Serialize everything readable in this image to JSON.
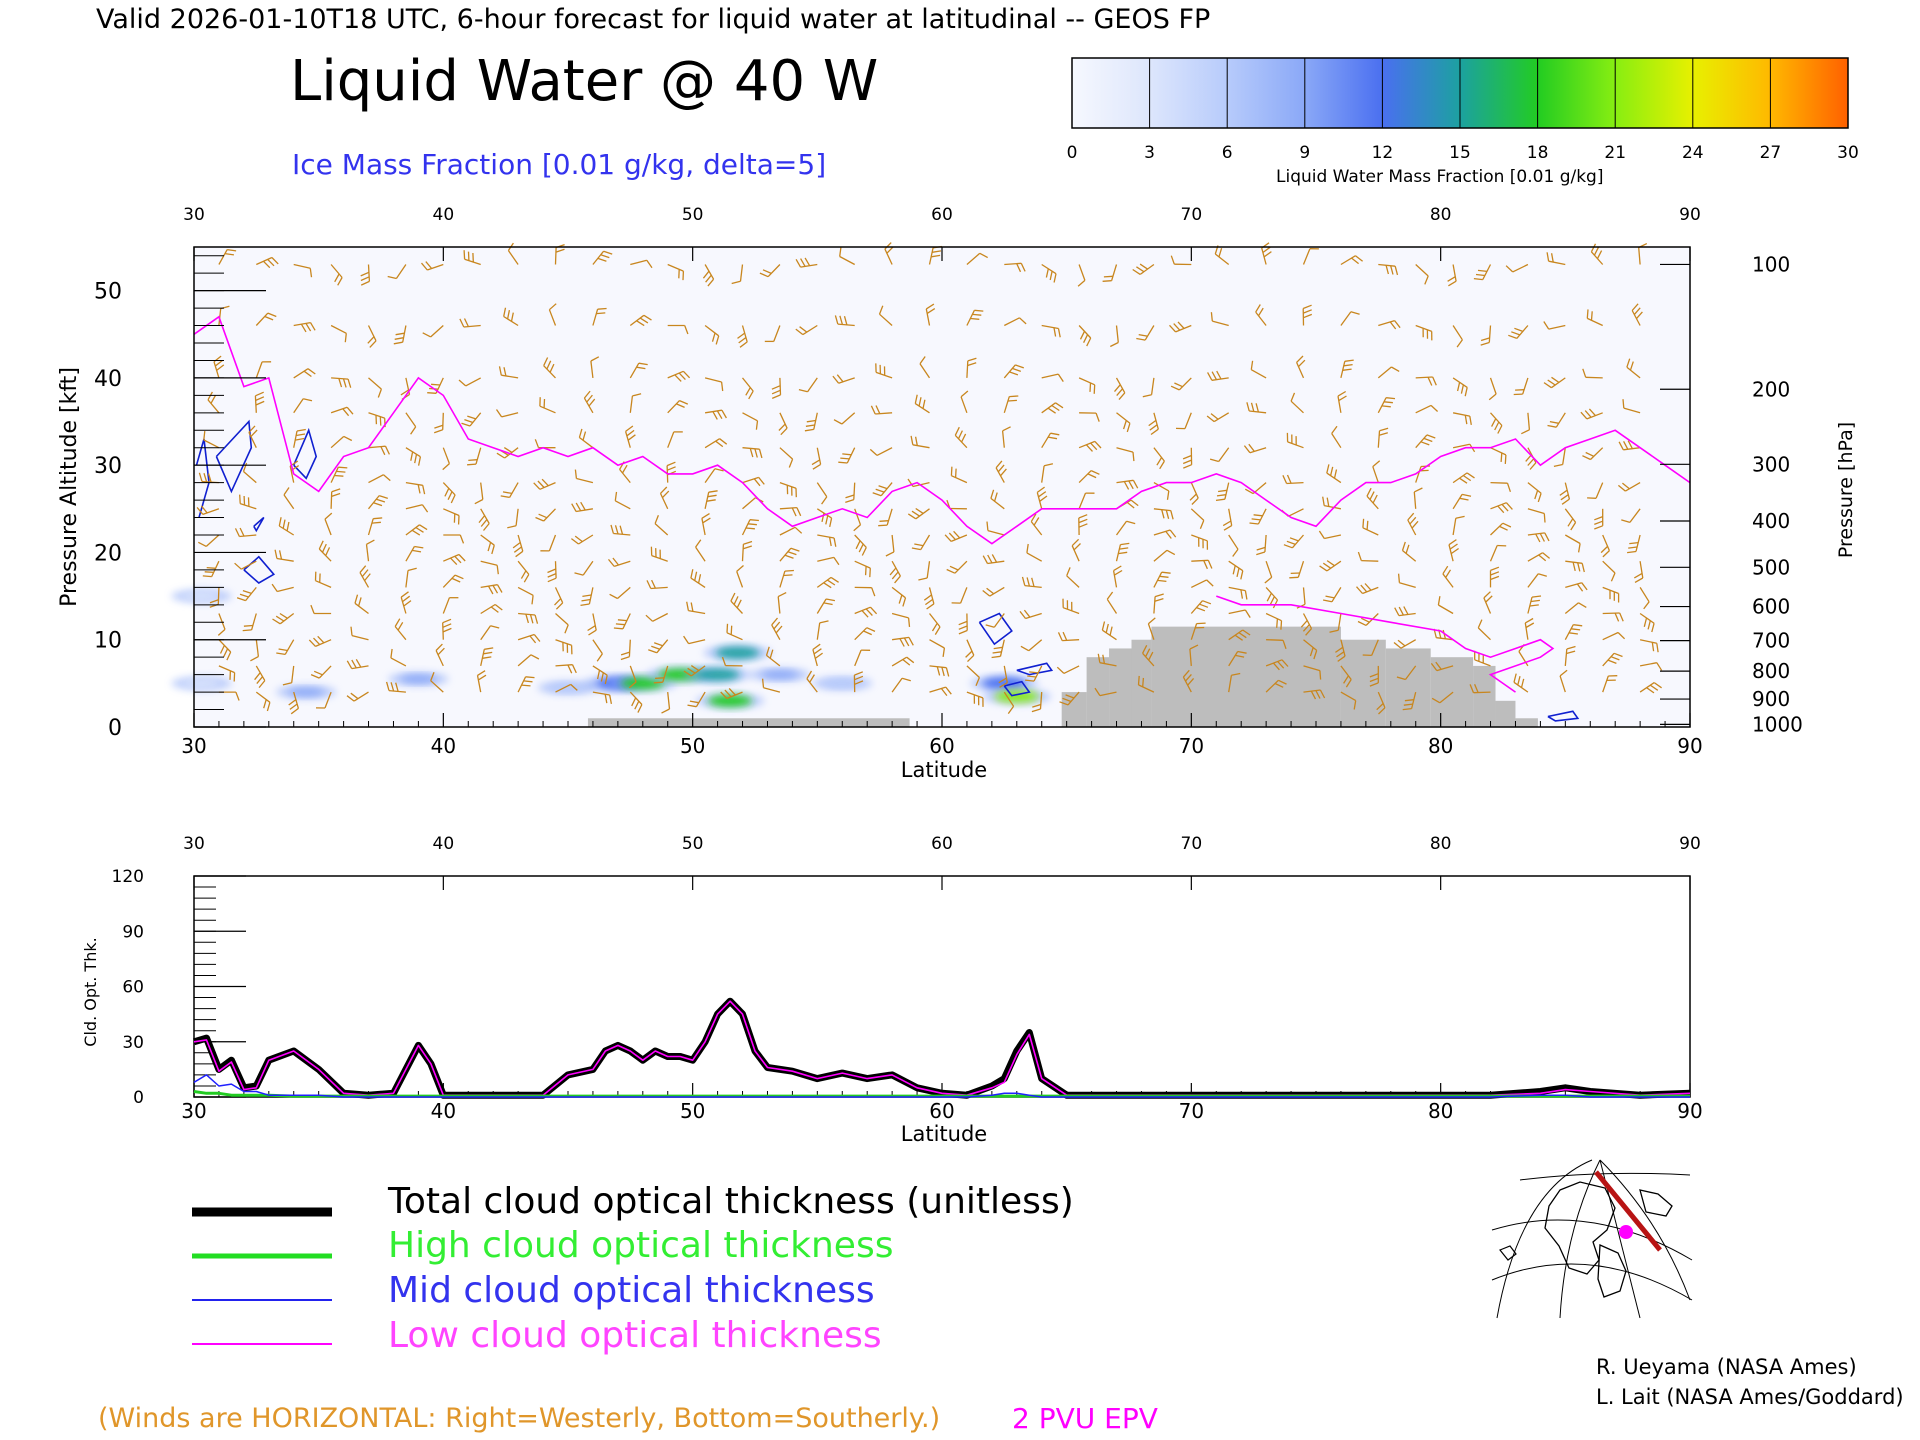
{
  "header": {
    "valid_line": "Valid 2026-01-10T18 UTC, 6-hour forecast for liquid water at latitudinal -- GEOS FP",
    "title": "Liquid Water @ 40 W",
    "subtitle": "Ice Mass Fraction [0.01 g/kg, delta=5]"
  },
  "colorbar": {
    "ticks": [
      "0",
      "3",
      "6",
      "9",
      "12",
      "15",
      "18",
      "21",
      "24",
      "27",
      "30"
    ],
    "label": "Liquid Water Mass Fraction [0.01 g/kg]",
    "colors": [
      "#f6f8fe",
      "#dde6fc",
      "#b7cbfb",
      "#8aa8f7",
      "#4a6ff0",
      "#1ca1a0",
      "#22cc22",
      "#88ee11",
      "#e8f000",
      "#ffb800",
      "#ff6000",
      "#ff2000"
    ]
  },
  "chart_data": [
    {
      "type": "heatmap",
      "title": "Liquid Water @ 40 W",
      "xlabel": "Latitude",
      "ylabel": "Pressure Altitude [kft]",
      "y2label": "Pressure [hPa]",
      "xlim": [
        30,
        90
      ],
      "ylim": [
        0,
        55
      ],
      "x_ticks": [
        "30",
        "40",
        "50",
        "60",
        "70",
        "80",
        "90"
      ],
      "y_ticks": [
        "0",
        "10",
        "20",
        "30",
        "40",
        "50"
      ],
      "pressure_ticks": [
        {
          "label": "100",
          "kft": 53
        },
        {
          "label": "200",
          "kft": 38.7
        },
        {
          "label": "300",
          "kft": 30.1
        },
        {
          "label": "400",
          "kft": 23.6
        },
        {
          "label": "500",
          "kft": 18.3
        },
        {
          "label": "600",
          "kft": 13.8
        },
        {
          "label": "700",
          "kft": 9.9
        },
        {
          "label": "800",
          "kft": 6.4
        },
        {
          "label": "900",
          "kft": 3.2
        },
        {
          "label": "1000",
          "kft": 0.3
        }
      ],
      "epv_2pvu_line": [
        [
          30,
          45
        ],
        [
          31,
          47
        ],
        [
          32,
          39
        ],
        [
          33,
          40
        ],
        [
          34,
          29
        ],
        [
          35,
          27
        ],
        [
          36,
          31
        ],
        [
          37,
          32
        ],
        [
          38,
          36
        ],
        [
          39,
          40
        ],
        [
          40,
          38
        ],
        [
          41,
          33
        ],
        [
          42,
          32
        ],
        [
          43,
          31
        ],
        [
          44,
          32
        ],
        [
          45,
          31
        ],
        [
          46,
          32
        ],
        [
          47,
          30
        ],
        [
          48,
          31
        ],
        [
          49,
          29
        ],
        [
          50,
          29
        ],
        [
          51,
          30
        ],
        [
          52,
          28
        ],
        [
          53,
          25
        ],
        [
          54,
          23
        ],
        [
          55,
          24
        ],
        [
          56,
          25
        ],
        [
          57,
          24
        ],
        [
          58,
          27
        ],
        [
          59,
          28
        ],
        [
          60,
          26
        ],
        [
          61,
          23
        ],
        [
          62,
          21
        ],
        [
          63,
          23
        ],
        [
          64,
          25
        ],
        [
          65,
          25
        ],
        [
          66,
          25
        ],
        [
          67,
          25
        ],
        [
          68,
          27
        ],
        [
          69,
          28
        ],
        [
          70,
          28
        ],
        [
          71,
          29
        ],
        [
          72,
          28
        ],
        [
          73,
          26
        ],
        [
          74,
          24
        ],
        [
          75,
          23
        ],
        [
          76,
          26
        ],
        [
          77,
          28
        ],
        [
          78,
          28
        ],
        [
          79,
          29
        ],
        [
          80,
          31
        ],
        [
          81,
          32
        ],
        [
          82,
          32
        ],
        [
          83,
          33
        ],
        [
          84,
          30
        ],
        [
          85,
          32
        ],
        [
          86,
          33
        ],
        [
          87,
          34
        ],
        [
          88,
          32
        ],
        [
          89,
          30
        ],
        [
          90,
          28
        ]
      ],
      "low_epv_line": [
        [
          71,
          15
        ],
        [
          72,
          14
        ],
        [
          74,
          14
        ],
        [
          76,
          13
        ],
        [
          78,
          12
        ],
        [
          80,
          11
        ],
        [
          81,
          9
        ],
        [
          82,
          8
        ],
        [
          83,
          9
        ],
        [
          84,
          10
        ],
        [
          84.5,
          9
        ],
        [
          84,
          8
        ],
        [
          82,
          6
        ],
        [
          83,
          4
        ]
      ],
      "terrain": [
        {
          "from": 45.8,
          "to": 58.7,
          "top": 1
        },
        {
          "from": 64.8,
          "to": 65.8,
          "top": 4
        },
        {
          "from": 65.8,
          "to": 66.7,
          "top": 8
        },
        {
          "from": 66.7,
          "to": 67.6,
          "top": 9
        },
        {
          "from": 67.6,
          "to": 68.4,
          "top": 10
        },
        {
          "from": 68.4,
          "to": 76.0,
          "top": 11.5
        },
        {
          "from": 76.0,
          "to": 77.8,
          "top": 10
        },
        {
          "from": 77.8,
          "to": 79.6,
          "top": 9
        },
        {
          "from": 79.6,
          "to": 81.3,
          "top": 8
        },
        {
          "from": 81.3,
          "to": 82.2,
          "top": 7
        },
        {
          "from": 82.2,
          "to": 83.0,
          "top": 3
        },
        {
          "from": 83.0,
          "to": 83.9,
          "top": 1
        }
      ],
      "liquid_water_cells": [
        {
          "lat": 30.3,
          "kft": 5,
          "value": 4
        },
        {
          "lat": 30.3,
          "kft": 15,
          "value": 3
        },
        {
          "lat": 34.5,
          "kft": 4,
          "value": 9
        },
        {
          "lat": 39.0,
          "kft": 5.5,
          "value": 8
        },
        {
          "lat": 45.0,
          "kft": 4.5,
          "value": 6
        },
        {
          "lat": 47.0,
          "kft": 5,
          "value": 13
        },
        {
          "lat": 48.0,
          "kft": 5,
          "value": 17
        },
        {
          "lat": 49.5,
          "kft": 6,
          "value": 18
        },
        {
          "lat": 51.0,
          "kft": 6,
          "value": 14
        },
        {
          "lat": 51.8,
          "kft": 8.5,
          "value": 15
        },
        {
          "lat": 51.5,
          "kft": 3,
          "value": 17
        },
        {
          "lat": 53.5,
          "kft": 6,
          "value": 8
        },
        {
          "lat": 56.0,
          "kft": 5,
          "value": 5
        },
        {
          "lat": 62.5,
          "kft": 5,
          "value": 13
        },
        {
          "lat": 63.0,
          "kft": 3.5,
          "value": 20
        }
      ],
      "ice_contours": [
        [
          [
            30.2,
            24
          ],
          [
            30.6,
            28
          ],
          [
            30.4,
            33
          ],
          [
            30.1,
            30
          ]
        ],
        [
          [
            30.9,
            31
          ],
          [
            32.2,
            35
          ],
          [
            32.3,
            32
          ],
          [
            31.5,
            27
          ],
          [
            30.9,
            31
          ]
        ],
        [
          [
            32.4,
            23
          ],
          [
            32.8,
            24
          ],
          [
            32.5,
            22.5
          ],
          [
            32.4,
            23
          ]
        ],
        [
          [
            32,
            18
          ],
          [
            32.6,
            19.5
          ],
          [
            33.2,
            17.5
          ],
          [
            32.6,
            16.5
          ],
          [
            32,
            18
          ]
        ],
        [
          [
            34,
            30
          ],
          [
            34.6,
            34
          ],
          [
            34.9,
            31
          ],
          [
            34.5,
            28.5
          ],
          [
            34,
            30
          ]
        ],
        [
          [
            61.5,
            12
          ],
          [
            62.3,
            13
          ],
          [
            62.8,
            11
          ],
          [
            62.1,
            9.5
          ],
          [
            61.5,
            12
          ]
        ],
        [
          [
            63,
            6.5
          ],
          [
            64.2,
            7.3
          ],
          [
            64.4,
            6.5
          ],
          [
            63.5,
            6
          ],
          [
            63,
            6.5
          ]
        ],
        [
          [
            62.5,
            4.7
          ],
          [
            63.2,
            5.2
          ],
          [
            63.5,
            4
          ],
          [
            62.8,
            3.6
          ],
          [
            62.5,
            4.7
          ]
        ],
        [
          [
            84.3,
            1.2
          ],
          [
            85.3,
            1.8
          ],
          [
            85.5,
            1
          ],
          [
            84.6,
            0.7
          ],
          [
            84.3,
            1.2
          ]
        ]
      ],
      "wind_barbs": {
        "columns": [
          31,
          32.5,
          34,
          35.5,
          37,
          38.5,
          40,
          41.5,
          43,
          44.5,
          46,
          47.5,
          49,
          50.5,
          52,
          53.5,
          55,
          56.5,
          58,
          59.5,
          61,
          62.5,
          64,
          65.5,
          67,
          68.5,
          70,
          71.5,
          73,
          74.5,
          76,
          77.5,
          79,
          80.5,
          82,
          83.5,
          85,
          86.5,
          88
        ],
        "levels": [
          4,
          7,
          10,
          13,
          16,
          19,
          22,
          25,
          28,
          32,
          36,
          40,
          46,
          53
        ]
      },
      "annotations": [
        "(Winds are HORIZONTAL: Right=Westerly, Bottom=Southerly.)",
        "2 PVU EPV"
      ]
    },
    {
      "type": "line",
      "xlabel": "Latitude",
      "ylabel": "Cld. Opt. Thk.",
      "xlim": [
        30,
        90
      ],
      "ylim": [
        0,
        120
      ],
      "x_ticks": [
        "30",
        "40",
        "50",
        "60",
        "70",
        "80",
        "90"
      ],
      "y_ticks": [
        "0",
        "30",
        "60",
        "90",
        "120"
      ],
      "x": [
        30,
        30.5,
        31,
        31.5,
        32,
        32.5,
        33,
        34,
        35,
        36,
        37,
        38,
        38.5,
        39,
        39.5,
        40,
        41,
        42,
        43,
        44,
        45,
        46,
        46.5,
        47,
        47.5,
        48,
        48.5,
        49,
        49.5,
        50,
        50.5,
        51,
        51.5,
        52,
        52.5,
        53,
        54,
        55,
        56,
        57,
        58,
        59,
        60,
        61,
        62,
        62.5,
        63,
        63.5,
        64,
        65,
        70,
        75,
        80,
        82,
        84,
        85,
        86,
        88,
        90
      ],
      "series": [
        {
          "name": "Total cloud optical thickness (unitless)",
          "color": "#000000",
          "values": [
            30,
            32,
            15,
            20,
            5,
            6,
            20,
            25,
            15,
            2,
            1,
            2,
            15,
            28,
            18,
            1,
            1,
            1,
            1,
            1,
            12,
            15,
            25,
            28,
            25,
            20,
            25,
            22,
            22,
            20,
            30,
            45,
            52,
            45,
            25,
            16,
            14,
            10,
            13,
            10,
            12,
            5,
            2,
            1,
            6,
            10,
            25,
            35,
            10,
            1,
            1,
            1,
            1,
            1,
            3,
            5,
            3,
            1,
            2
          ]
        },
        {
          "name": "High cloud optical thickness",
          "color": "#22cc22",
          "values": [
            3,
            2,
            2,
            1,
            1,
            1,
            1,
            0.5,
            0.5,
            0.5,
            0.5,
            0.5,
            0.5,
            0.5,
            0.5,
            0.5,
            0.5,
            0.5,
            0.5,
            0.5,
            0.5,
            0.5,
            0.5,
            0.5,
            0.5,
            0.5,
            0.5,
            0.5,
            0.5,
            0.5,
            0.5,
            0.5,
            0.5,
            0.5,
            0.5,
            0.5,
            0.5,
            0.5,
            0.5,
            0.5,
            0.5,
            0.5,
            0.5,
            0.5,
            0.5,
            0.5,
            0.5,
            0.5,
            0.5,
            0.5,
            0.5,
            0.5,
            0.5,
            0.5,
            0.5,
            0.5,
            0.5,
            0.5,
            0.5
          ]
        },
        {
          "name": "Mid cloud optical thickness",
          "color": "#2020ff",
          "values": [
            8,
            12,
            6,
            7,
            3,
            3,
            1,
            1,
            1,
            0,
            0,
            0,
            0,
            0,
            0,
            0,
            0,
            0,
            0,
            0,
            0,
            0,
            0,
            0,
            0,
            0,
            0,
            0,
            0,
            0,
            0,
            0,
            0,
            0,
            0,
            0,
            0,
            0,
            0,
            0,
            0,
            0,
            0,
            0,
            1,
            2,
            2,
            1,
            0,
            0,
            0,
            0,
            0,
            0,
            1,
            1,
            0,
            0,
            0
          ]
        },
        {
          "name": "Low cloud optical thickness",
          "color": "#ff00ff",
          "values": [
            30,
            31,
            14,
            19,
            4,
            5,
            20,
            25,
            15,
            2,
            1,
            2,
            15,
            28,
            18,
            1,
            1,
            1,
            1,
            1,
            12,
            15,
            25,
            28,
            25,
            20,
            25,
            22,
            22,
            20,
            30,
            45,
            52,
            45,
            25,
            16,
            14,
            10,
            13,
            10,
            12,
            5,
            2,
            1,
            5,
            8,
            23,
            34,
            10,
            1,
            1,
            1,
            1,
            1,
            2,
            4,
            3,
            1,
            2
          ]
        }
      ]
    }
  ],
  "legend": [
    {
      "label": "Total cloud optical thickness (unitless)",
      "color": "#000000"
    },
    {
      "label": "High cloud optical thickness",
      "color": "#22dd22"
    },
    {
      "label": "Mid cloud optical thickness",
      "color": "#2222ee"
    },
    {
      "label": "Low cloud optical thickness",
      "color": "#ff00ff"
    }
  ],
  "footer": {
    "winds_note": "(Winds are HORIZONTAL: Right=Westerly, Bottom=Southerly.)",
    "pv_label": "2 PVU EPV",
    "credit_1": "R. Ueyama (NASA Ames)",
    "credit_2": "L. Lait (NASA Ames/Goddard)"
  },
  "colors": {
    "wind_barb": "#c8861e",
    "epv": "#ff00ff",
    "ice": "#1020d0",
    "terrain": "#bdbdbd",
    "accent_blue": "#3333ee",
    "note": "#e0962a"
  }
}
